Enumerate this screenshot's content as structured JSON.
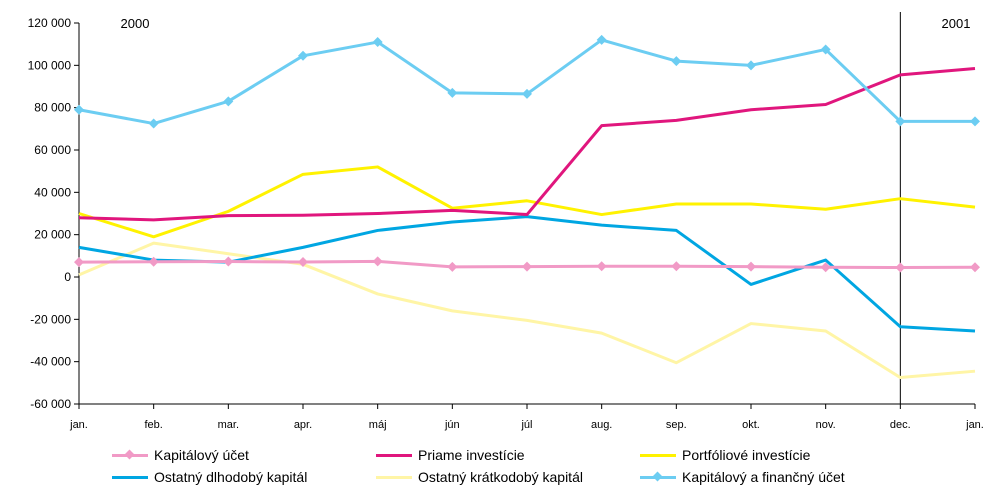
{
  "chart_data": {
    "type": "line",
    "categories": [
      "jan.",
      "feb.",
      "mar.",
      "apr.",
      "máj",
      "jún",
      "júl",
      "aug.",
      "sep.",
      "okt.",
      "nov.",
      "dec.",
      "jan."
    ],
    "year_labels": [
      "2000",
      "2001"
    ],
    "year_divider_after": "dec.",
    "ylim": [
      -60000,
      120000
    ],
    "yticks": [
      120000,
      100000,
      80000,
      60000,
      40000,
      20000,
      0,
      -20000,
      -40000,
      -60000
    ],
    "ytick_labels": [
      "120 000",
      "100 000",
      "80 000",
      "60 000",
      "40 000",
      "20 000",
      "0",
      "-20 000",
      "-40 000",
      "-60 000"
    ],
    "grid": false,
    "legend_placement": "bottom",
    "series": [
      {
        "name": "Kapitálový účet",
        "color": "#f19ac6",
        "marker": "diamond",
        "values": [
          7000,
          7200,
          7300,
          7100,
          7400,
          4800,
          4900,
          5100,
          5100,
          4900,
          4600,
          4500,
          4600
        ]
      },
      {
        "name": "Priame investície",
        "color": "#e0167d",
        "marker": "none",
        "values": [
          28000,
          27000,
          29000,
          29200,
          30000,
          31500,
          29500,
          71500,
          74000,
          79000,
          81500,
          95500,
          98500
        ]
      },
      {
        "name": "Portfóliové investície",
        "color": "#fff200",
        "marker": "none",
        "values": [
          30000,
          19000,
          31000,
          48500,
          52000,
          32500,
          36000,
          29500,
          34500,
          34500,
          32000,
          37000,
          33000
        ]
      },
      {
        "name": "Ostatný dlhodobý kapitál",
        "color": "#00a6e2",
        "marker": "none",
        "values": [
          14000,
          8000,
          7000,
          14000,
          22000,
          26000,
          28500,
          24500,
          22000,
          -3500,
          8000,
          -23500,
          -25500
        ]
      },
      {
        "name": "Ostatný krátkodobý kapitál",
        "color": "#fff5a6",
        "marker": "none",
        "values": [
          1000,
          16000,
          11000,
          6000,
          -8000,
          -16000,
          -20500,
          -26500,
          -40500,
          -22000,
          -25500,
          -47500,
          -44500
        ]
      },
      {
        "name": "Kapitálový a finančný účet",
        "color": "#6ccdf2",
        "marker": "diamond",
        "values": [
          79000,
          72500,
          83000,
          104500,
          111000,
          87000,
          86500,
          112000,
          102000,
          100000,
          107500,
          73500,
          73500
        ]
      }
    ]
  }
}
